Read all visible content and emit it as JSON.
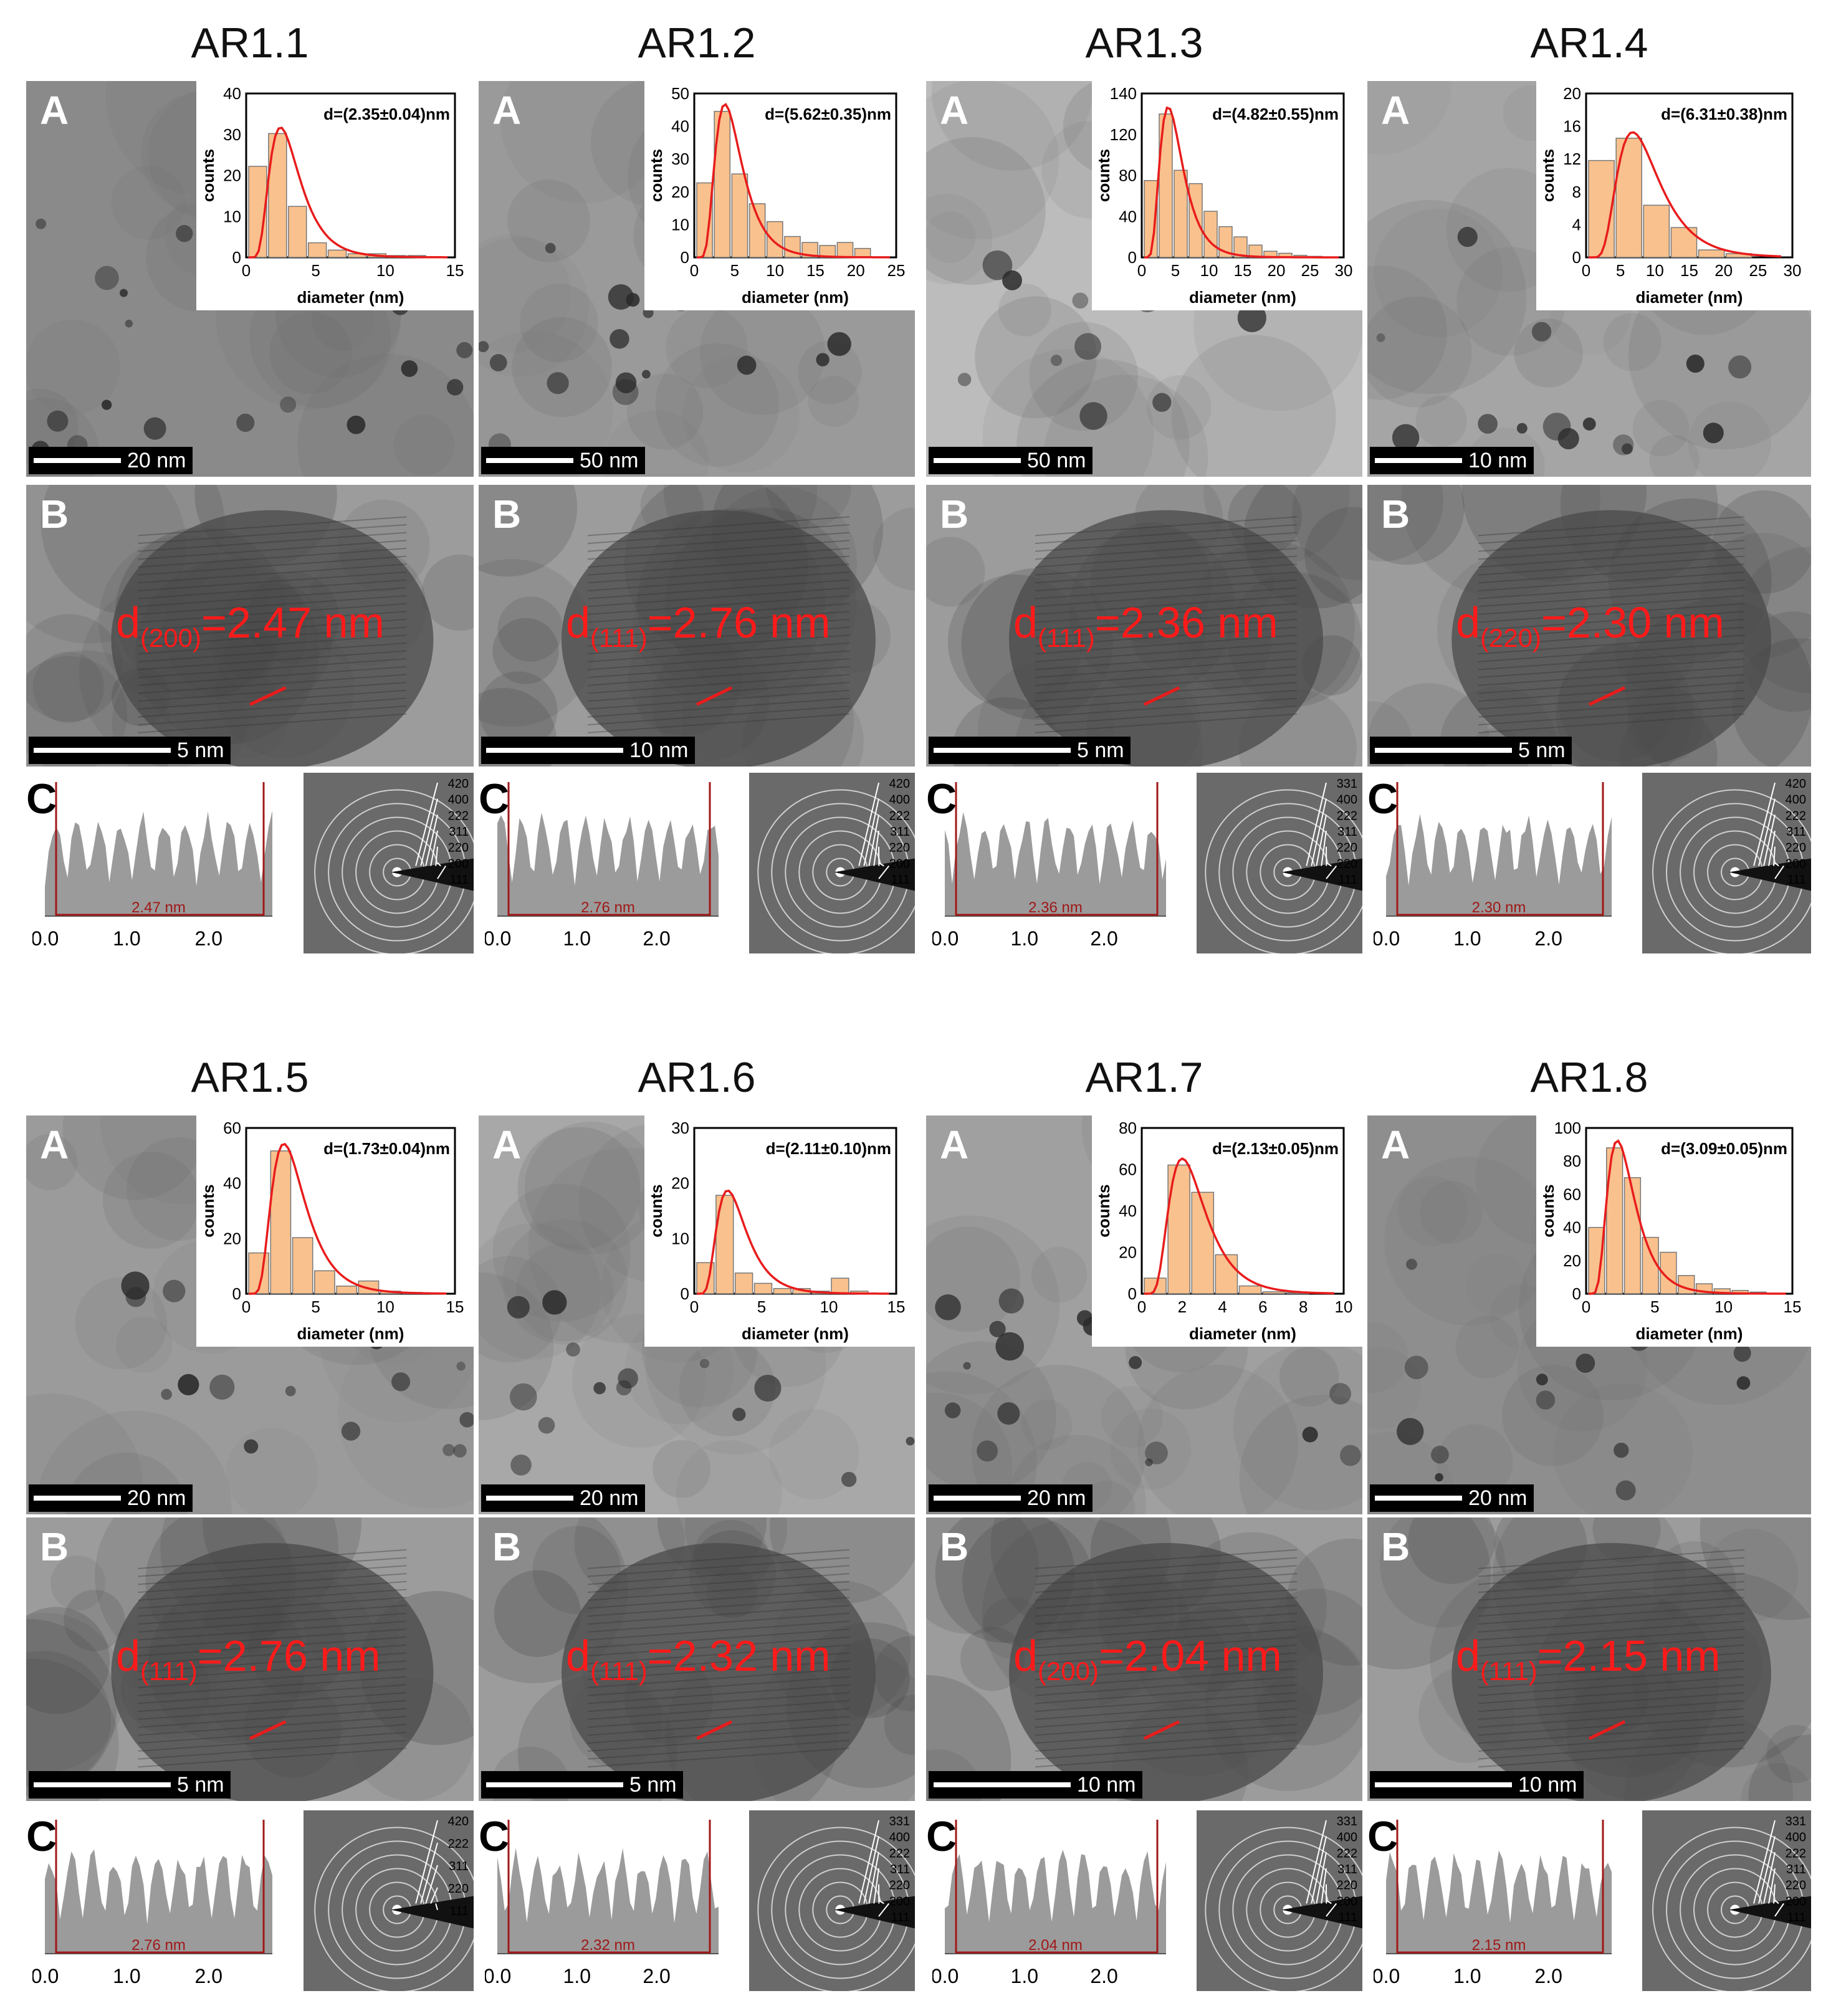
{
  "panel_letters": {
    "a": "A",
    "b": "B",
    "c": "C"
  },
  "samples": [
    {
      "title": "AR1.1",
      "scale_a": "20 nm",
      "scale_b": "5 nm",
      "hist_label": "d=(2.35±0.04)nm",
      "hist_xticks": [
        "0",
        "5",
        "10",
        "15"
      ],
      "hist_yticks": [
        "0",
        "10",
        "20",
        "30",
        "40"
      ],
      "hist_bars": [
        25,
        34,
        14,
        4,
        2,
        1,
        1,
        0.5,
        0.5
      ],
      "lattice_index": "(200)",
      "lattice_value": "=2.47 nm",
      "profile_label": "2.47 nm",
      "profile_ticks": [
        "0.0",
        "1.0",
        "2.0"
      ],
      "ring_labels": [
        "420",
        "400",
        "222",
        "311",
        "220",
        "200",
        "111"
      ]
    },
    {
      "title": "AR1.2",
      "scale_a": "50 nm",
      "scale_b": "10 nm",
      "hist_label": "d=(5.62±0.35)nm",
      "hist_xticks": [
        "0",
        "5",
        "10",
        "15",
        "20",
        "25"
      ],
      "hist_yticks": [
        "0",
        "10",
        "20",
        "30",
        "40",
        "50"
      ],
      "hist_bars": [
        25,
        49,
        28,
        18,
        12,
        7,
        5,
        4,
        5,
        3
      ],
      "lattice_index": "(111)",
      "lattice_value": "=2.76 nm",
      "profile_label": "2.76 nm",
      "profile_ticks": [
        "0.0",
        "1.0",
        "2.0"
      ],
      "ring_labels": [
        "420",
        "400",
        "222",
        "311",
        "220",
        "200",
        "111"
      ]
    },
    {
      "title": "AR1.3",
      "scale_a": "50 nm",
      "scale_b": "5 nm",
      "hist_label": "d=(4.82±0.55)nm",
      "hist_xticks": [
        "0",
        "5",
        "10",
        "15",
        "20",
        "25",
        "30"
      ],
      "hist_yticks": [
        "0",
        "40",
        "80",
        "120",
        "140"
      ],
      "hist_bars": [
        75,
        140,
        85,
        72,
        45,
        30,
        20,
        12,
        6,
        4,
        2,
        1
      ],
      "lattice_index": "(111)",
      "lattice_value": "=2.36 nm",
      "profile_label": "2.36 nm",
      "profile_ticks": [
        "0.0",
        "1.0",
        "2.0"
      ],
      "ring_labels": [
        "331",
        "400",
        "222",
        "311",
        "220",
        "220",
        "111"
      ]
    },
    {
      "title": "AR1.4",
      "scale_a": "10 nm",
      "scale_b": "5 nm",
      "hist_label": "d=(6.31±0.38)nm",
      "hist_xticks": [
        "0",
        "5",
        "10",
        "15",
        "20",
        "25",
        "30"
      ],
      "hist_yticks": [
        "0",
        "4",
        "8",
        "12",
        "16",
        "20"
      ],
      "hist_bars": [
        13,
        16,
        7,
        4,
        1,
        0.5
      ],
      "lattice_index": "(220)",
      "lattice_value": "=2.30 nm",
      "profile_label": "2.30 nm",
      "profile_ticks": [
        "0.0",
        "1.0",
        "2.0"
      ],
      "ring_labels": [
        "420",
        "400",
        "222",
        "311",
        "220",
        "200",
        "111"
      ]
    },
    {
      "title": "AR1.5",
      "scale_a": "20 nm",
      "scale_b": "5 nm",
      "hist_label": "d=(1.73±0.04)nm",
      "hist_xticks": [
        "0",
        "5",
        "10",
        "15"
      ],
      "hist_yticks": [
        "0",
        "20",
        "40",
        "60"
      ],
      "hist_bars": [
        16,
        56,
        22,
        9,
        3,
        5,
        1,
        0.5
      ],
      "lattice_index": "(111)",
      "lattice_value": "=2.76 nm",
      "profile_label": "2.76 nm",
      "profile_ticks": [
        "0.0",
        "1.0",
        "2.0"
      ],
      "ring_labels": [
        "420",
        "222",
        "311",
        "220",
        "111"
      ]
    },
    {
      "title": "AR1.6",
      "scale_a": "20 nm",
      "scale_b": "5 nm",
      "hist_label": "d=(2.11±0.10)nm",
      "hist_xticks": [
        "0",
        "5",
        "10",
        "15"
      ],
      "hist_yticks": [
        "0",
        "10",
        "20",
        "30"
      ],
      "hist_bars": [
        6,
        19,
        4,
        2,
        1,
        1,
        0.5,
        3,
        0.5
      ],
      "lattice_index": "(111)",
      "lattice_value": "=2.32 nm",
      "profile_label": "2.32 nm",
      "profile_ticks": [
        "0.0",
        "1.0",
        "2.0"
      ],
      "ring_labels": [
        "331",
        "400",
        "222",
        "311",
        "220",
        "200",
        "111"
      ]
    },
    {
      "title": "AR1.7",
      "scale_a": "20 nm",
      "scale_b": "10 nm",
      "hist_label": "d=(2.13±0.05)nm",
      "hist_xticks": [
        "0",
        "2",
        "4",
        "6",
        "8",
        "10"
      ],
      "hist_yticks": [
        "0",
        "20",
        "40",
        "60",
        "80"
      ],
      "hist_bars": [
        8,
        66,
        52,
        20,
        4,
        1,
        0.5
      ],
      "lattice_index": "(200)",
      "lattice_value": "=2.04 nm",
      "profile_label": "2.04 nm",
      "profile_ticks": [
        "0.0",
        "1.0",
        "2.0"
      ],
      "ring_labels": [
        "331",
        "400",
        "222",
        "311",
        "220",
        "200",
        "111"
      ]
    },
    {
      "title": "AR1.8",
      "scale_a": "20 nm",
      "scale_b": "10 nm",
      "hist_label": "d=(3.09±0.05)nm",
      "hist_xticks": [
        "0",
        "5",
        "10",
        "15"
      ],
      "hist_yticks": [
        "0",
        "20",
        "40",
        "60",
        "80",
        "100"
      ],
      "hist_bars": [
        40,
        88,
        70,
        34,
        25,
        11,
        6,
        3,
        2,
        1
      ],
      "lattice_index": "(111)",
      "lattice_value": "=2.15 nm",
      "profile_label": "2.15 nm",
      "profile_ticks": [
        "0.0",
        "1.0",
        "2.0"
      ],
      "ring_labels": [
        "331",
        "400",
        "222",
        "311",
        "220",
        "200",
        "111"
      ]
    }
  ],
  "hist_axis": {
    "xlabel": "diameter (nm)",
    "ylabel": "counts"
  }
}
